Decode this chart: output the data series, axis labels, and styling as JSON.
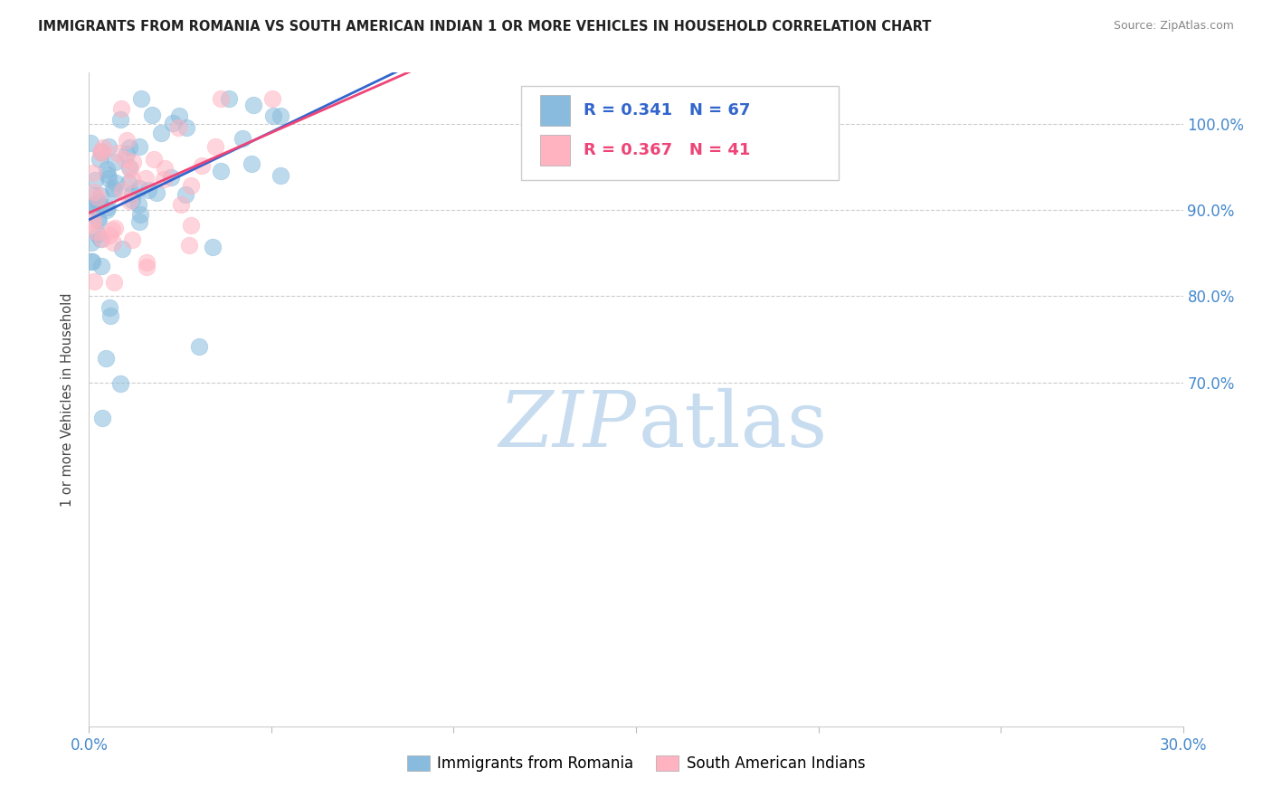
{
  "title": "IMMIGRANTS FROM ROMANIA VS SOUTH AMERICAN INDIAN 1 OR MORE VEHICLES IN HOUSEHOLD CORRELATION CHART",
  "source": "Source: ZipAtlas.com",
  "ylabel": "1 or more Vehicles in Household",
  "blue_R": 0.341,
  "blue_N": 67,
  "pink_R": 0.367,
  "pink_N": 41,
  "blue_color": "#88BBDD",
  "pink_color": "#FFB3C1",
  "blue_line_color": "#3366CC",
  "pink_line_color": "#EE4477",
  "legend_label_blue": "Immigrants from Romania",
  "legend_label_pink": "South American Indians",
  "watermark_zip": "ZIP",
  "watermark_atlas": "atlas",
  "watermark_color": "#C8DCF0",
  "xlim": [
    0.0,
    30.0
  ],
  "ylim": [
    30.0,
    106.0
  ],
  "y_ticks": [
    70.0,
    80.0,
    90.0,
    100.0
  ],
  "x_ticks": [
    0.0,
    5.0,
    10.0,
    15.0,
    20.0,
    25.0,
    30.0
  ],
  "tick_color": "#4488CC",
  "grid_color": "#CCCCCC",
  "grid_style": "--",
  "title_color": "#222222",
  "source_color": "#888888",
  "ylabel_color": "#444444",
  "legend_text_color": "#222222",
  "legend_R_blue_color": "#3366CC",
  "legend_R_pink_color": "#EE4477",
  "legend_N_color": "#3366CC"
}
